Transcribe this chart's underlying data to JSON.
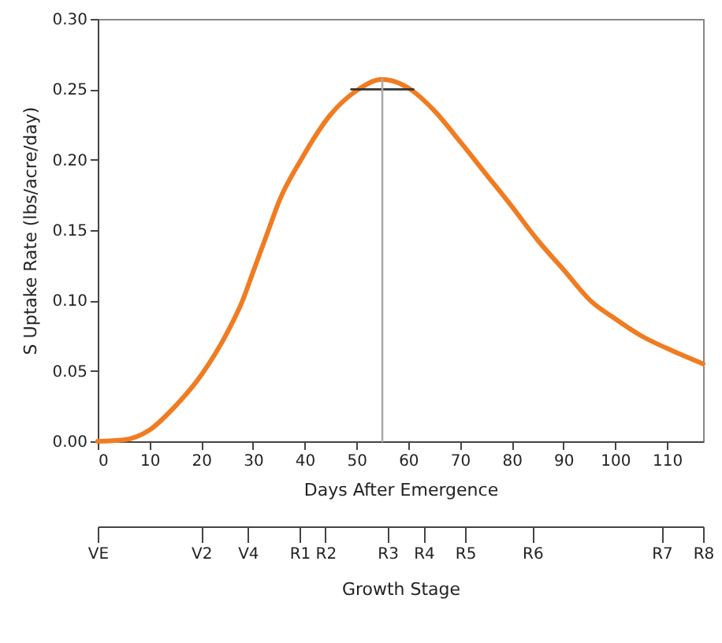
{
  "chart_data": [
    {
      "type": "line",
      "xlabel": "Days After Emergence",
      "ylabel": "S Uptake Rate (lbs/acre/day)",
      "xlim": [
        0,
        117
      ],
      "xticks": [
        0,
        10,
        20,
        30,
        40,
        50,
        60,
        70,
        80,
        90,
        100,
        110
      ],
      "ylim": [
        0,
        0.3
      ],
      "yticks": [
        {
          "value": 0,
          "label": "0.00"
        },
        {
          "value": 0.05,
          "label": "0.05"
        },
        {
          "value": 0.1,
          "label": "0.10"
        },
        {
          "value": 0.15,
          "label": "0.15"
        },
        {
          "value": 0.2,
          "label": "0.20"
        },
        {
          "value": 0.25,
          "label": "0.25"
        },
        {
          "value": 0.3,
          "label": "0.30"
        }
      ],
      "grid": false,
      "line_style": "solid",
      "series": [
        {
          "color": "#f07c22",
          "x": [
            0,
            5,
            10,
            15,
            20,
            25,
            28,
            30,
            33,
            35,
            39.3,
            45,
            50,
            55,
            60,
            65,
            70,
            75,
            80,
            83.5,
            85,
            90,
            95.2,
            100,
            105,
            110,
            117
          ],
          "values": [
            0,
            0.001,
            0.008,
            0.025,
            0.047,
            0.077,
            0.1,
            0.12,
            0.15,
            0.17,
            0.2,
            0.232,
            0.249,
            0.257,
            0.251,
            0.235,
            0.213,
            0.19,
            0.167,
            0.15,
            0.143,
            0.122,
            0.1,
            0.087,
            0.075,
            0.066,
            0.055
          ]
        },
        {
          "color": "#333333",
          "x": [
            49,
            61
          ],
          "values": [
            0.25,
            0.25
          ]
        },
        {
          "color": "#aaaaaa",
          "x": [
            55,
            55
          ],
          "values": [
            0,
            0.257
          ]
        }
      ]
    },
    {
      "type": "other",
      "xlabel": "Growth Stage",
      "categories": [
        "VE",
        null,
        null,
        null,
        null,
        null,
        null,
        null,
        null,
        null,
        null,
        null,
        null,
        null,
        null,
        null,
        null,
        null,
        null,
        null,
        "V2",
        null,
        null,
        null,
        null,
        null,
        null,
        null,
        null,
        "V4",
        null,
        null,
        null,
        null,
        null,
        null,
        null,
        null,
        null,
        "R1",
        null,
        null,
        null,
        null,
        "R2",
        null,
        null,
        null,
        null,
        null,
        null,
        null,
        null,
        null,
        null,
        null,
        "R3",
        null,
        null,
        null,
        null,
        null,
        null,
        "R4",
        null,
        null,
        null,
        null,
        null,
        null,
        null,
        "R5",
        null,
        null,
        null,
        null,
        null,
        null,
        null,
        null,
        null,
        null,
        null,
        null,
        "R6",
        null,
        null,
        null,
        null,
        null,
        null,
        null,
        null,
        null,
        null,
        null,
        null,
        null,
        null,
        null,
        null,
        null,
        null,
        null,
        null,
        null,
        null,
        null,
        null,
        "R7",
        null,
        null,
        null,
        null,
        null,
        null,
        null,
        "R8"
      ]
    }
  ]
}
